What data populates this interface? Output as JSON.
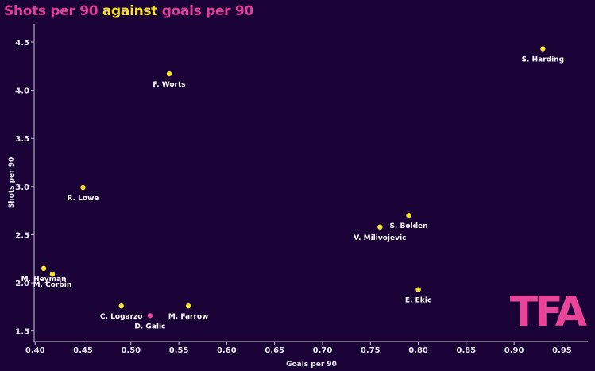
{
  "chart_data": {
    "type": "scatter",
    "title_parts": [
      "Shots per 90",
      "against",
      "goals per 90"
    ],
    "xlabel": "Goals per 90",
    "ylabel": "Shots per 90",
    "xlim": [
      0.399,
      0.977
    ],
    "ylim": [
      1.39,
      4.69
    ],
    "xticks": [
      "0.40",
      "0.45",
      "0.50",
      "0.55",
      "0.60",
      "0.65",
      "0.70",
      "0.75",
      "0.80",
      "0.85",
      "0.90",
      "0.95"
    ],
    "yticks": [
      "1.5",
      "2.0",
      "2.5",
      "3.0",
      "3.5",
      "4.0",
      "4.5"
    ],
    "grid": false,
    "points": [
      {
        "name": "S. Harding",
        "x": 0.93,
        "y": 4.43,
        "color": "#f5e12a"
      },
      {
        "name": "F. Worts",
        "x": 0.54,
        "y": 4.17,
        "color": "#f5e12a"
      },
      {
        "name": "R. Lowe",
        "x": 0.45,
        "y": 2.99,
        "color": "#f5e12a"
      },
      {
        "name": "S. Bolden",
        "x": 0.79,
        "y": 2.7,
        "color": "#f5e12a"
      },
      {
        "name": "V. Milivojevic",
        "x": 0.76,
        "y": 2.58,
        "color": "#f5e12a"
      },
      {
        "name": "M. Heyman",
        "x": 0.409,
        "y": 2.15,
        "color": "#f5e12a"
      },
      {
        "name": "M. Corbin",
        "x": 0.418,
        "y": 2.09,
        "color": "#f5e12a"
      },
      {
        "name": "E. Ekic",
        "x": 0.8,
        "y": 1.93,
        "color": "#f5e12a"
      },
      {
        "name": "C. Logarzo",
        "x": 0.49,
        "y": 1.76,
        "color": "#f5e12a"
      },
      {
        "name": "D. Galic",
        "x": 0.52,
        "y": 1.66,
        "color": "#e8449a"
      },
      {
        "name": "M. Farrow",
        "x": 0.56,
        "y": 1.76,
        "color": "#f5e12a"
      }
    ]
  },
  "logo": "TFA"
}
